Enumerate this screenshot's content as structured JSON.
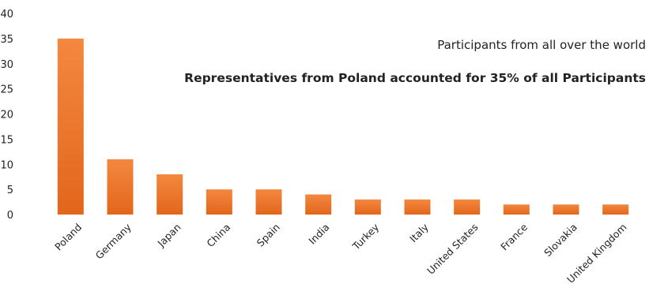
{
  "chart_data": {
    "type": "bar",
    "title": "Participants from all over the world",
    "subtitle": "Representatives from Poland accounted for 35% of all Participants",
    "categories": [
      "Poland",
      "Germany",
      "Japan",
      "China",
      "Spain",
      "India",
      "Turkey",
      "Italy",
      "United States",
      "France",
      "Slovakia",
      "United Kingdom"
    ],
    "values": [
      35,
      11,
      8,
      5,
      5,
      4,
      3,
      3,
      3,
      2,
      2,
      2
    ],
    "xlabel": "",
    "ylabel": "",
    "ylim": [
      0,
      40
    ],
    "yticks": [
      0,
      5,
      10,
      15,
      20,
      25,
      30,
      35,
      40
    ],
    "grid": false,
    "legend": "none",
    "colors": {
      "bar_top": "#f4883f",
      "bar_bottom": "#e2661c",
      "text": "#222222"
    }
  }
}
